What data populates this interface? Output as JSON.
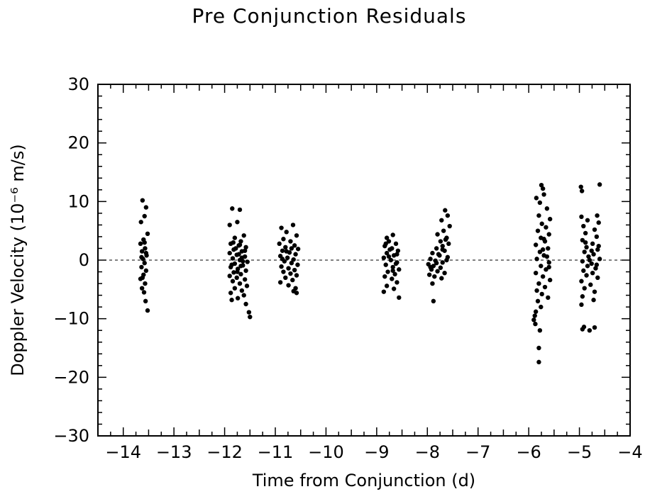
{
  "chart_data": {
    "type": "scatter",
    "title": "Pre Conjunction Residuals",
    "xlabel": "Time from Conjunction (d)",
    "ylabel": "Doppler Velocity (10⁻⁶ m/s)",
    "xlim": [
      -14.5,
      -4
    ],
    "ylim": [
      -30,
      30
    ],
    "x_ticks": [
      -14,
      -13,
      -12,
      -11,
      -10,
      -9,
      -8,
      -7,
      -6,
      -5,
      -4
    ],
    "y_ticks": [
      -30,
      -20,
      -10,
      0,
      10,
      20,
      30
    ],
    "x_tick_labels": [
      "−14",
      "−13",
      "−12",
      "−11",
      "−10",
      "−9",
      "−8",
      "−7",
      "−6",
      "−5",
      "−4"
    ],
    "y_tick_labels": [
      "−30",
      "−20",
      "−10",
      "0",
      "10",
      "20",
      "30"
    ],
    "reference_line": {
      "y": 0,
      "style": "dashed"
    },
    "grid": false,
    "legend": "none",
    "marker_color": "#000000",
    "clusters_note_free": true,
    "series": [
      {
        "points": [
          [
            -13.62,
            10.2
          ],
          [
            -13.55,
            9.0
          ],
          [
            -13.58,
            7.5
          ],
          [
            -13.65,
            6.5
          ],
          [
            -13.52,
            4.5
          ],
          [
            -13.6,
            3.5
          ],
          [
            -13.66,
            2.8
          ],
          [
            -13.57,
            2.0
          ],
          [
            -13.63,
            1.5
          ],
          [
            -13.54,
            0.8
          ],
          [
            -13.61,
            0.2
          ],
          [
            -13.58,
            -0.5
          ],
          [
            -13.64,
            -1.2
          ],
          [
            -13.55,
            -1.8
          ],
          [
            -13.6,
            -2.5
          ],
          [
            -13.66,
            -3.2
          ],
          [
            -13.57,
            -4.0
          ],
          [
            -13.63,
            -4.8
          ],
          [
            -13.59,
            -5.5
          ],
          [
            -13.56,
            -7.0
          ],
          [
            -13.52,
            -8.6
          ],
          [
            -13.64,
            0.5
          ],
          [
            -13.58,
            3.0
          ],
          [
            -13.62,
            -3.0
          ],
          [
            -13.55,
            1.2
          ],
          [
            -11.85,
            8.8
          ],
          [
            -11.7,
            8.6
          ],
          [
            -11.75,
            6.5
          ],
          [
            -11.9,
            6.0
          ],
          [
            -11.62,
            4.2
          ],
          [
            -11.8,
            3.8
          ],
          [
            -11.68,
            3.2
          ],
          [
            -11.88,
            2.8
          ],
          [
            -11.72,
            2.5
          ],
          [
            -11.58,
            2.2
          ],
          [
            -11.82,
            1.8
          ],
          [
            -11.66,
            1.5
          ],
          [
            -11.9,
            1.2
          ],
          [
            -11.76,
            0.9
          ],
          [
            -11.6,
            0.6
          ],
          [
            -11.84,
            0.3
          ],
          [
            -11.7,
            0.0
          ],
          [
            -11.55,
            -0.3
          ],
          [
            -11.8,
            -0.6
          ],
          [
            -11.64,
            -0.9
          ],
          [
            -11.88,
            -1.2
          ],
          [
            -11.74,
            -1.5
          ],
          [
            -11.58,
            -1.8
          ],
          [
            -11.82,
            -2.1
          ],
          [
            -11.68,
            -2.4
          ],
          [
            -11.9,
            -2.7
          ],
          [
            -11.76,
            -3.0
          ],
          [
            -11.6,
            -3.3
          ],
          [
            -11.84,
            -3.6
          ],
          [
            -11.7,
            -4.0
          ],
          [
            -11.56,
            -4.4
          ],
          [
            -11.8,
            -4.8
          ],
          [
            -11.66,
            -5.2
          ],
          [
            -11.88,
            -5.6
          ],
          [
            -11.62,
            -6.0
          ],
          [
            -11.74,
            -6.5
          ],
          [
            -11.58,
            -7.5
          ],
          [
            -11.52,
            -8.9
          ],
          [
            -11.5,
            -9.7
          ],
          [
            -11.86,
            -6.8
          ],
          [
            -11.72,
            1.0
          ],
          [
            -11.64,
            -0.2
          ],
          [
            -11.78,
            2.0
          ],
          [
            -11.68,
            -1.0
          ],
          [
            -11.83,
            3.0
          ],
          [
            -11.6,
            1.6
          ],
          [
            -11.75,
            -2.0
          ],
          [
            -11.66,
            0.4
          ],
          [
            -11.86,
            -0.8
          ],
          [
            -11.7,
            2.6
          ],
          [
            -10.88,
            5.5
          ],
          [
            -10.65,
            6.0
          ],
          [
            -10.78,
            4.8
          ],
          [
            -10.58,
            4.2
          ],
          [
            -10.84,
            3.6
          ],
          [
            -10.7,
            3.2
          ],
          [
            -10.92,
            2.8
          ],
          [
            -10.62,
            2.5
          ],
          [
            -10.8,
            2.2
          ],
          [
            -10.55,
            1.9
          ],
          [
            -10.86,
            1.6
          ],
          [
            -10.72,
            1.3
          ],
          [
            -10.6,
            1.0
          ],
          [
            -10.9,
            0.7
          ],
          [
            -10.76,
            0.4
          ],
          [
            -10.64,
            0.1
          ],
          [
            -10.82,
            -0.2
          ],
          [
            -10.68,
            -0.5
          ],
          [
            -10.56,
            -0.8
          ],
          [
            -10.88,
            -1.1
          ],
          [
            -10.74,
            -1.4
          ],
          [
            -10.62,
            -1.7
          ],
          [
            -10.84,
            -2.0
          ],
          [
            -10.7,
            -2.3
          ],
          [
            -10.58,
            -2.6
          ],
          [
            -10.8,
            -3.0
          ],
          [
            -10.66,
            -3.4
          ],
          [
            -10.9,
            -3.8
          ],
          [
            -10.74,
            -4.3
          ],
          [
            -10.6,
            -4.8
          ],
          [
            -10.64,
            -5.3
          ],
          [
            -10.58,
            -5.6
          ],
          [
            -10.78,
            1.5
          ],
          [
            -10.68,
            2.0
          ],
          [
            -10.86,
            0.2
          ],
          [
            -8.8,
            3.8
          ],
          [
            -8.68,
            4.3
          ],
          [
            -8.76,
            3.2
          ],
          [
            -8.62,
            2.8
          ],
          [
            -8.84,
            2.4
          ],
          [
            -8.7,
            2.0
          ],
          [
            -8.58,
            1.6
          ],
          [
            -8.8,
            1.2
          ],
          [
            -8.66,
            0.8
          ],
          [
            -8.86,
            0.4
          ],
          [
            -8.72,
            0.0
          ],
          [
            -8.6,
            -0.4
          ],
          [
            -8.82,
            -0.8
          ],
          [
            -8.68,
            -1.2
          ],
          [
            -8.56,
            -1.6
          ],
          [
            -8.78,
            -2.0
          ],
          [
            -8.64,
            -2.4
          ],
          [
            -8.84,
            -2.8
          ],
          [
            -8.7,
            -3.2
          ],
          [
            -8.6,
            -3.8
          ],
          [
            -8.8,
            -4.4
          ],
          [
            -8.66,
            -4.9
          ],
          [
            -8.86,
            -5.4
          ],
          [
            -8.56,
            -6.4
          ],
          [
            -8.74,
            1.8
          ],
          [
            -8.62,
            -0.6
          ],
          [
            -8.76,
            0.6
          ],
          [
            -8.68,
            -1.8
          ],
          [
            -8.82,
            2.8
          ],
          [
            -8.6,
            1.0
          ],
          [
            -7.65,
            8.5
          ],
          [
            -7.6,
            7.6
          ],
          [
            -7.72,
            6.8
          ],
          [
            -7.56,
            5.8
          ],
          [
            -7.68,
            5.0
          ],
          [
            -7.8,
            4.4
          ],
          [
            -7.62,
            3.8
          ],
          [
            -7.74,
            3.2
          ],
          [
            -7.58,
            2.8
          ],
          [
            -7.7,
            2.4
          ],
          [
            -7.82,
            2.0
          ],
          [
            -7.66,
            1.6
          ],
          [
            -7.9,
            1.2
          ],
          [
            -7.76,
            0.8
          ],
          [
            -7.6,
            0.5
          ],
          [
            -7.94,
            0.2
          ],
          [
            -7.84,
            -0.1
          ],
          [
            -7.7,
            -0.4
          ],
          [
            -7.98,
            -0.7
          ],
          [
            -7.88,
            -1.0
          ],
          [
            -7.74,
            -1.3
          ],
          [
            -7.92,
            -1.6
          ],
          [
            -7.8,
            -1.9
          ],
          [
            -7.66,
            -2.2
          ],
          [
            -7.96,
            -2.5
          ],
          [
            -7.86,
            -2.8
          ],
          [
            -7.72,
            -3.1
          ],
          [
            -7.9,
            -4.0
          ],
          [
            -7.88,
            -7.0
          ],
          [
            -7.64,
            3.5
          ],
          [
            -7.78,
            1.0
          ],
          [
            -7.62,
            0.0
          ],
          [
            -7.82,
            -0.5
          ],
          [
            -7.7,
            1.8
          ],
          [
            -7.94,
            -1.2
          ],
          [
            -5.85,
            10.6
          ],
          [
            -5.75,
            12.8
          ],
          [
            -5.72,
            12.2
          ],
          [
            -5.7,
            11.2
          ],
          [
            -5.78,
            9.8
          ],
          [
            -5.64,
            8.8
          ],
          [
            -5.8,
            7.6
          ],
          [
            -5.58,
            7.0
          ],
          [
            -5.74,
            6.2
          ],
          [
            -5.66,
            5.6
          ],
          [
            -5.82,
            5.0
          ],
          [
            -5.6,
            4.4
          ],
          [
            -5.76,
            3.8
          ],
          [
            -5.68,
            3.2
          ],
          [
            -5.86,
            2.6
          ],
          [
            -5.62,
            2.0
          ],
          [
            -5.78,
            1.4
          ],
          [
            -5.7,
            0.8
          ],
          [
            -5.84,
            0.2
          ],
          [
            -5.6,
            -0.4
          ],
          [
            -5.76,
            -1.0
          ],
          [
            -5.66,
            -1.6
          ],
          [
            -5.86,
            -2.2
          ],
          [
            -5.72,
            -2.8
          ],
          [
            -5.58,
            -3.4
          ],
          [
            -5.8,
            -4.0
          ],
          [
            -5.68,
            -4.6
          ],
          [
            -5.84,
            -5.2
          ],
          [
            -5.74,
            -5.8
          ],
          [
            -5.62,
            -6.4
          ],
          [
            -5.82,
            -7.0
          ],
          [
            -5.76,
            -8.0
          ],
          [
            -5.86,
            -8.8
          ],
          [
            -5.88,
            -9.5
          ],
          [
            -5.9,
            -10.2
          ],
          [
            -5.87,
            -10.9
          ],
          [
            -5.78,
            -12.0
          ],
          [
            -5.8,
            -15.0
          ],
          [
            -5.8,
            -17.4
          ],
          [
            -5.64,
            0.6
          ],
          [
            -5.72,
            1.8
          ],
          [
            -5.6,
            -1.2
          ],
          [
            -5.7,
            3.6
          ],
          [
            -4.97,
            12.5
          ],
          [
            -4.95,
            11.8
          ],
          [
            -4.6,
            12.9
          ],
          [
            -4.96,
            7.4
          ],
          [
            -4.65,
            7.6
          ],
          [
            -4.84,
            6.8
          ],
          [
            -4.62,
            6.4
          ],
          [
            -4.92,
            5.8
          ],
          [
            -4.7,
            5.2
          ],
          [
            -4.88,
            4.6
          ],
          [
            -4.66,
            4.0
          ],
          [
            -4.94,
            3.4
          ],
          [
            -4.74,
            2.8
          ],
          [
            -4.86,
            2.2
          ],
          [
            -4.64,
            1.8
          ],
          [
            -4.9,
            1.4
          ],
          [
            -4.72,
            1.0
          ],
          [
            -4.82,
            0.6
          ],
          [
            -4.6,
            0.2
          ],
          [
            -4.94,
            -0.2
          ],
          [
            -4.76,
            -0.6
          ],
          [
            -4.84,
            -1.0
          ],
          [
            -4.68,
            -1.4
          ],
          [
            -4.92,
            -1.8
          ],
          [
            -4.74,
            -2.2
          ],
          [
            -4.86,
            -2.6
          ],
          [
            -4.64,
            -3.0
          ],
          [
            -4.96,
            -3.6
          ],
          [
            -4.78,
            -4.2
          ],
          [
            -4.9,
            -4.8
          ],
          [
            -4.7,
            -5.4
          ],
          [
            -4.94,
            -6.2
          ],
          [
            -4.72,
            -6.8
          ],
          [
            -4.96,
            -7.6
          ],
          [
            -4.91,
            -11.4
          ],
          [
            -4.94,
            -11.8
          ],
          [
            -4.8,
            -12.0
          ],
          [
            -4.7,
            -11.5
          ],
          [
            -4.62,
            2.4
          ],
          [
            -4.8,
            0.0
          ],
          [
            -4.66,
            -0.8
          ],
          [
            -4.88,
            3.0
          ],
          [
            -4.76,
            1.6
          ]
        ]
      }
    ]
  }
}
